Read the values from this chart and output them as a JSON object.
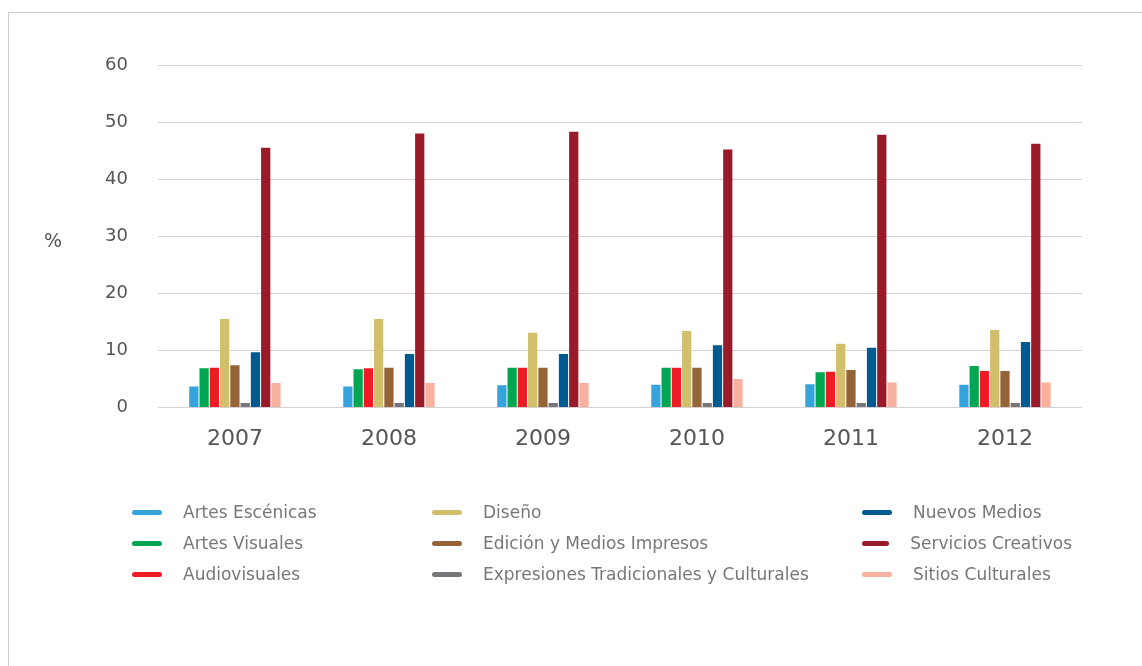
{
  "chart_data": {
    "type": "bar",
    "ylabel": "%",
    "categories": [
      "2007",
      "2008",
      "2009",
      "2010",
      "2011",
      "2012"
    ],
    "series": [
      {
        "name": "Artes Escénicas",
        "color": "#35a4dc",
        "values": [
          3.7,
          3.7,
          3.9,
          4.0,
          4.1,
          4.0
        ]
      },
      {
        "name": "Artes Visuales",
        "color": "#00a651",
        "values": [
          6.9,
          6.7,
          7.0,
          7.0,
          6.2,
          7.3
        ]
      },
      {
        "name": "Audiovisuales",
        "color": "#ed1c24",
        "values": [
          7.0,
          6.9,
          7.0,
          7.0,
          6.3,
          6.4
        ]
      },
      {
        "name": "Diseño",
        "color": "#d2bf6b",
        "values": [
          15.5,
          15.5,
          13.1,
          13.4,
          11.2,
          13.6
        ]
      },
      {
        "name": "Edición y Medios Impresos",
        "color": "#946338",
        "values": [
          7.4,
          7.0,
          7.0,
          7.0,
          6.6,
          6.4
        ]
      },
      {
        "name": "Expresiones Tradicionales y Culturales",
        "color": "#77777b",
        "values": [
          0.8,
          0.8,
          0.8,
          0.8,
          0.8,
          0.8
        ]
      },
      {
        "name": "Nuevos Medios",
        "color": "#005a92",
        "values": [
          9.7,
          9.4,
          9.4,
          10.9,
          10.5,
          11.5
        ]
      },
      {
        "name": "Servicios Creativos",
        "color": "#991b2a",
        "values": [
          45.5,
          48.0,
          48.3,
          45.2,
          47.8,
          46.2
        ]
      },
      {
        "name": "Sitios Culturales",
        "color": "#f8b09f",
        "values": [
          4.3,
          4.3,
          4.3,
          5.0,
          4.4,
          4.4
        ]
      }
    ],
    "ylim": [
      0,
      60
    ],
    "yticks": [
      0,
      10,
      20,
      30,
      40,
      50,
      60
    ],
    "grid": "y",
    "legend": "bottom"
  }
}
